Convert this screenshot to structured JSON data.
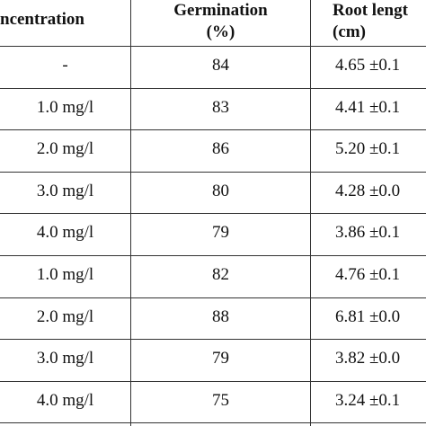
{
  "table": {
    "header": [
      [
        "ncentration"
      ],
      [
        "Germination",
        "(%)"
      ],
      [
        "Root lengt",
        "(cm)"
      ]
    ],
    "rows": [
      [
        "-",
        "84",
        "4.65 ±0.1"
      ],
      [
        "1.0 mg/l",
        "83",
        "4.41 ±0.1"
      ],
      [
        "2.0 mg/l",
        "86",
        "5.20 ±0.1"
      ],
      [
        "3.0 mg/l",
        "80",
        "4.28 ±0.0"
      ],
      [
        "4.0 mg/l",
        "79",
        "3.86 ±0.1"
      ],
      [
        "1.0 mg/l",
        "82",
        "4.76 ±0.1"
      ],
      [
        "2.0 mg/l",
        "88",
        "6.81 ±0.0"
      ],
      [
        "3.0 mg/l",
        "79",
        "3.82 ±0.0"
      ],
      [
        "4.0 mg/l",
        "75",
        "3.24 ±0.1"
      ]
    ]
  }
}
